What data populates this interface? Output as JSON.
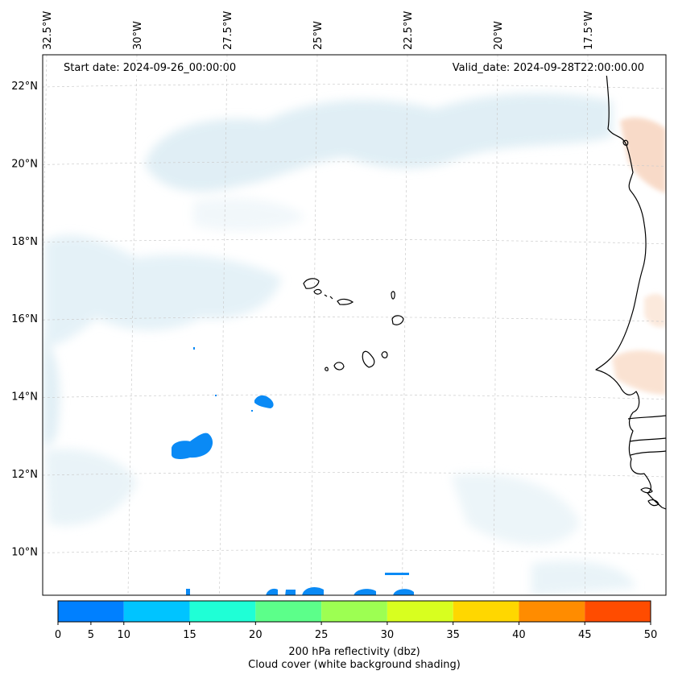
{
  "map": {
    "start_date": "Start date: 2024-09-26_00:00:00",
    "valid_date": "Valid_date: 2024-09-28T22:00:00.00",
    "lon_ticks": [
      {
        "lon": -32.5,
        "label": "32.5°W"
      },
      {
        "lon": -30.0,
        "label": "30°W"
      },
      {
        "lon": -27.5,
        "label": "27.5°W"
      },
      {
        "lon": -25.0,
        "label": "25°W"
      },
      {
        "lon": -22.5,
        "label": "22.5°W"
      },
      {
        "lon": -20.0,
        "label": "20°W"
      },
      {
        "lon": -17.5,
        "label": "17.5°W"
      }
    ],
    "lat_ticks": [
      {
        "lat": 22,
        "label": "22°N"
      },
      {
        "lat": 20,
        "label": "20°N"
      },
      {
        "lat": 18,
        "label": "18°N"
      },
      {
        "lat": 16,
        "label": "16°N"
      },
      {
        "lat": 14,
        "label": "14°N"
      },
      {
        "lat": 12,
        "label": "12°N"
      },
      {
        "lat": 10,
        "label": "10°N"
      }
    ],
    "colors": {
      "coastline": "#000000",
      "gridline": "#cccccc",
      "cloud_shade": "#d6e9f2",
      "warm_shade": "#f7d2bb"
    }
  },
  "colorbar": {
    "title": "200 hPa reflectivity (dbz)",
    "subtitle": "Cloud cover (white background shading)",
    "ticks": [
      "0",
      "5",
      "10",
      "15",
      "20",
      "25",
      "30",
      "35",
      "40",
      "45",
      "50"
    ],
    "bins": [
      {
        "from": 0,
        "to": 10,
        "color": "#0080ff"
      },
      {
        "from": 10,
        "to": 15,
        "color": "#00c4ff"
      },
      {
        "from": 15,
        "to": 20,
        "color": "#1fffd6"
      },
      {
        "from": 20,
        "to": 25,
        "color": "#5cff8a"
      },
      {
        "from": 25,
        "to": 30,
        "color": "#9dff52"
      },
      {
        "from": 30,
        "to": 35,
        "color": "#d8ff1f"
      },
      {
        "from": 35,
        "to": 40,
        "color": "#ffd700"
      },
      {
        "from": 40,
        "to": 45,
        "color": "#ff8c00"
      },
      {
        "from": 45,
        "to": 50,
        "color": "#ff4c00"
      }
    ]
  }
}
